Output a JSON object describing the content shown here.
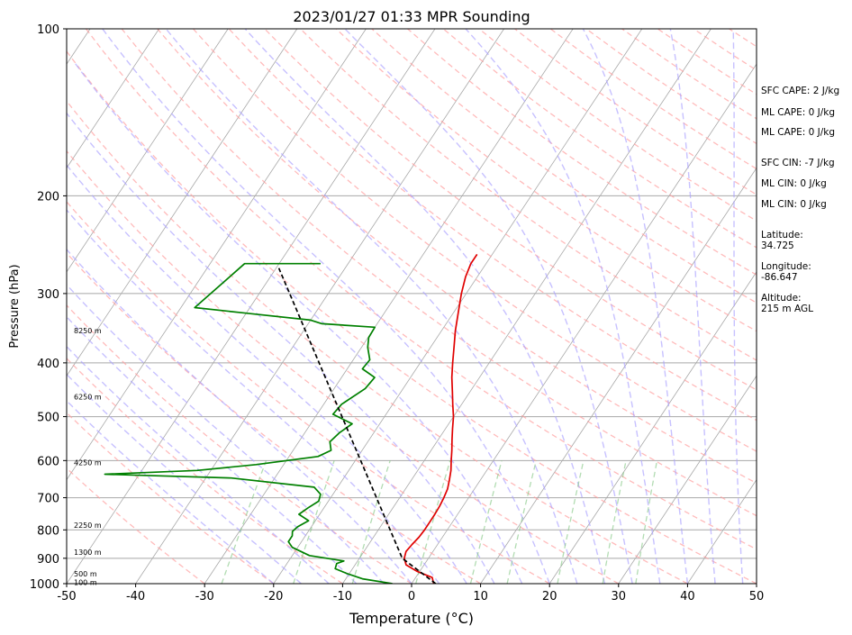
{
  "chart_data": {
    "type": "line",
    "title": "2023/01/27 01:33 MPR Sounding",
    "xlabel": "Temperature (°C)",
    "ylabel": "Pressure (hPa)",
    "xlim": [
      -50,
      50
    ],
    "ylim": [
      1000,
      100
    ],
    "y_scale": "log",
    "x_ticks": [
      -50,
      -40,
      -30,
      -20,
      -10,
      0,
      10,
      20,
      30,
      40,
      50
    ],
    "y_ticks": [
      1000,
      900,
      800,
      700,
      600,
      500,
      400,
      300,
      200,
      100
    ],
    "grid": true,
    "series": [
      {
        "color": "#e00000",
        "points": [
          [
            1000,
            3.2
          ],
          [
            975,
            2.4
          ],
          [
            950,
            -0.4
          ],
          [
            925,
            -2.6
          ],
          [
            900,
            -3.5
          ],
          [
            875,
            -3.9
          ],
          [
            850,
            -3.7
          ],
          [
            825,
            -3.4
          ],
          [
            800,
            -3.3
          ],
          [
            775,
            -3.3
          ],
          [
            750,
            -3.3
          ],
          [
            725,
            -3.4
          ],
          [
            700,
            -3.6
          ],
          [
            675,
            -3.9
          ],
          [
            650,
            -4.5
          ],
          [
            625,
            -5.2
          ],
          [
            600,
            -6.1
          ],
          [
            575,
            -7.0
          ],
          [
            550,
            -8.0
          ],
          [
            525,
            -9.0
          ],
          [
            500,
            -10.0
          ],
          [
            475,
            -11.3
          ],
          [
            450,
            -12.6
          ],
          [
            425,
            -14.0
          ],
          [
            400,
            -15.3
          ],
          [
            375,
            -16.6
          ],
          [
            350,
            -18.0
          ],
          [
            325,
            -19.3
          ],
          [
            300,
            -20.7
          ],
          [
            280,
            -21.7
          ],
          [
            265,
            -22.2
          ],
          [
            255,
            -22.2
          ]
        ]
      },
      {
        "color": "#008000",
        "points": [
          [
            1000,
            -2.8
          ],
          [
            980,
            -7.6
          ],
          [
            960,
            -10.2
          ],
          [
            940,
            -12.5
          ],
          [
            920,
            -12.8
          ],
          [
            910,
            -12.0
          ],
          [
            890,
            -17.5
          ],
          [
            860,
            -20.8
          ],
          [
            840,
            -21.9
          ],
          [
            820,
            -21.9
          ],
          [
            805,
            -22.3
          ],
          [
            790,
            -22.0
          ],
          [
            770,
            -21.0
          ],
          [
            750,
            -23.0
          ],
          [
            730,
            -22.3
          ],
          [
            710,
            -21.4
          ],
          [
            690,
            -21.8
          ],
          [
            670,
            -23.4
          ],
          [
            645,
            -36.3
          ],
          [
            635,
            -55.0
          ],
          [
            625,
            -42.0
          ],
          [
            610,
            -34.0
          ],
          [
            590,
            -25.8
          ],
          [
            575,
            -24.5
          ],
          [
            555,
            -25.5
          ],
          [
            535,
            -25.0
          ],
          [
            515,
            -24.0
          ],
          [
            495,
            -27.7
          ],
          [
            475,
            -27.4
          ],
          [
            445,
            -25.5
          ],
          [
            425,
            -25.2
          ],
          [
            410,
            -27.8
          ],
          [
            395,
            -27.6
          ],
          [
            375,
            -29.1
          ],
          [
            360,
            -29.9
          ],
          [
            345,
            -30.0
          ],
          [
            340,
            -38.0
          ],
          [
            335,
            -40.0
          ],
          [
            325,
            -50.5
          ],
          [
            318,
            -58.0
          ],
          [
            265,
            -55.0
          ],
          [
            265,
            -44.0
          ]
        ]
      },
      {
        "color": "#000000",
        "points": [
          [
            1000,
            3.5
          ],
          [
            900,
            -3.8
          ],
          [
            270,
            -49.6
          ]
        ]
      }
    ],
    "height_labels": [
      {
        "p": 350,
        "text": "8250 m"
      },
      {
        "p": 460,
        "text": "6250 m"
      },
      {
        "p": 605,
        "text": "4250 m"
      },
      {
        "p": 785,
        "text": "2250 m"
      },
      {
        "p": 878,
        "text": "1300 m"
      },
      {
        "p": 960,
        "text": "500 m"
      },
      {
        "p": 995,
        "text": "100 m"
      }
    ]
  },
  "indices": {
    "sfc_cape": "SFC CAPE: 2 J/kg",
    "ml_cape_1": "ML CAPE: 0 J/kg",
    "ml_cape_2": "ML CAPE: 0 J/kg",
    "sfc_cin": "SFC CIN: -7 J/kg",
    "ml_cin_1": "ML CIN: 0 J/kg",
    "ml_cin_2": "ML CIN: 0 J/kg"
  },
  "location": {
    "latitude": "Latitude:\n34.725",
    "longitude": "Longitude:\n-86.647",
    "altitude": "Altitude:\n215 m AGL"
  }
}
